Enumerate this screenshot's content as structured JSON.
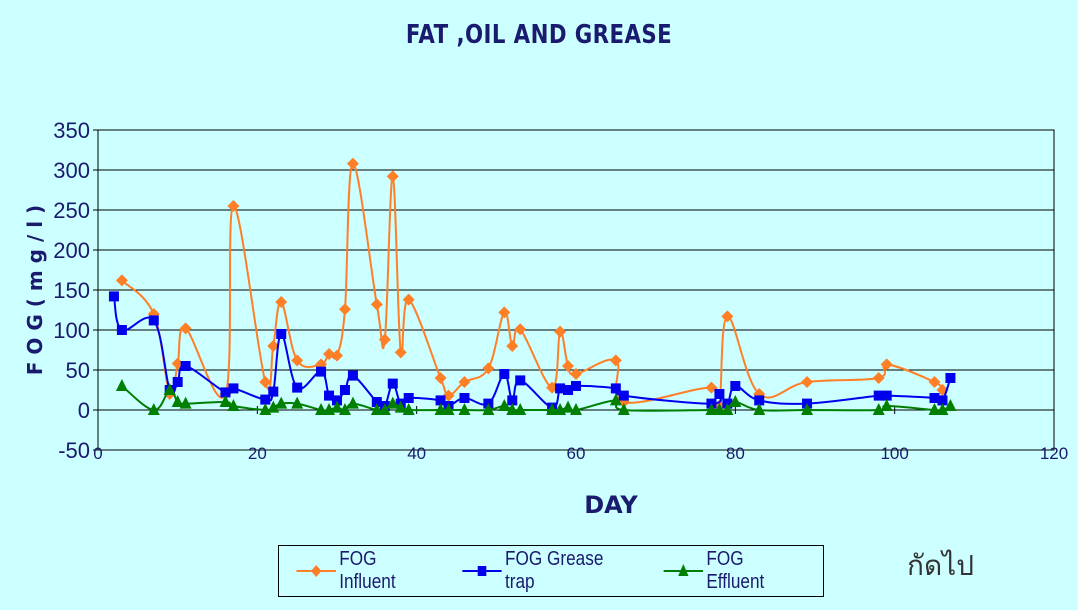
{
  "chart_data": {
    "type": "line",
    "title": "FAT ,OIL AND GREASE",
    "xlabel": "DAY",
    "ylabel": "F O G   ( m g / l )",
    "xlim": [
      0,
      120
    ],
    "ylim": [
      -50,
      350
    ],
    "xticks": [
      0,
      20,
      40,
      60,
      80,
      100,
      120
    ],
    "yticks": [
      -50,
      0,
      50,
      100,
      150,
      200,
      250,
      300,
      350
    ],
    "grid": "horizontal",
    "legend_position": "bottom",
    "series": [
      {
        "name": "FOG Influent",
        "color": "#ff7f27",
        "marker": "diamond",
        "x": [
          3,
          7,
          9,
          10,
          11,
          16,
          17,
          21,
          22,
          23,
          25,
          28,
          29,
          30,
          31,
          32,
          35,
          36,
          37,
          38,
          39,
          43,
          44,
          46,
          49,
          51,
          52,
          53,
          57,
          58,
          59,
          60,
          65,
          66,
          77,
          78,
          79,
          83,
          89,
          98,
          99,
          105,
          106
        ],
        "y": [
          162,
          120,
          20,
          58,
          102,
          20,
          255,
          35,
          80,
          135,
          62,
          57,
          70,
          68,
          126,
          308,
          132,
          88,
          292,
          72,
          138,
          40,
          18,
          35,
          52,
          122,
          80,
          101,
          28,
          98,
          55,
          45,
          62,
          10,
          28,
          5,
          117,
          20,
          35,
          40,
          57,
          35,
          25
        ]
      },
      {
        "name": "FOG Grease trap",
        "color": "#0000ee",
        "marker": "square",
        "x": [
          2,
          3,
          7,
          9,
          10,
          11,
          16,
          17,
          21,
          22,
          23,
          25,
          28,
          29,
          30,
          31,
          32,
          35,
          36,
          37,
          38,
          39,
          43,
          44,
          46,
          49,
          51,
          52,
          53,
          57,
          58,
          59,
          60,
          65,
          66,
          77,
          78,
          79,
          80,
          83,
          89,
          98,
          99,
          105,
          106,
          107
        ],
        "y": [
          142,
          100,
          112,
          25,
          35,
          55,
          22,
          27,
          13,
          23,
          95,
          28,
          48,
          18,
          12,
          25,
          43,
          10,
          5,
          33,
          8,
          15,
          12,
          5,
          15,
          8,
          45,
          12,
          37,
          3,
          27,
          25,
          30,
          27,
          18,
          8,
          20,
          8,
          30,
          12,
          8,
          18,
          18,
          15,
          12,
          40
        ]
      },
      {
        "name": "FOG Effluent",
        "color": "#007f00",
        "marker": "triangle",
        "x": [
          3,
          7,
          9,
          10,
          11,
          16,
          17,
          21,
          22,
          23,
          25,
          28,
          29,
          30,
          31,
          32,
          35,
          36,
          37,
          38,
          39,
          43,
          44,
          46,
          49,
          51,
          52,
          53,
          57,
          58,
          59,
          60,
          65,
          66,
          77,
          78,
          79,
          80,
          83,
          89,
          98,
          99,
          105,
          106,
          107
        ],
        "y": [
          30,
          0,
          25,
          10,
          8,
          10,
          5,
          0,
          3,
          8,
          8,
          0,
          0,
          3,
          0,
          8,
          0,
          0,
          8,
          3,
          0,
          0,
          0,
          0,
          0,
          5,
          0,
          0,
          0,
          0,
          3,
          0,
          12,
          0,
          0,
          0,
          0,
          10,
          0,
          0,
          0,
          5,
          0,
          0,
          5
        ]
      }
    ]
  },
  "footer_note": "กัดไป"
}
